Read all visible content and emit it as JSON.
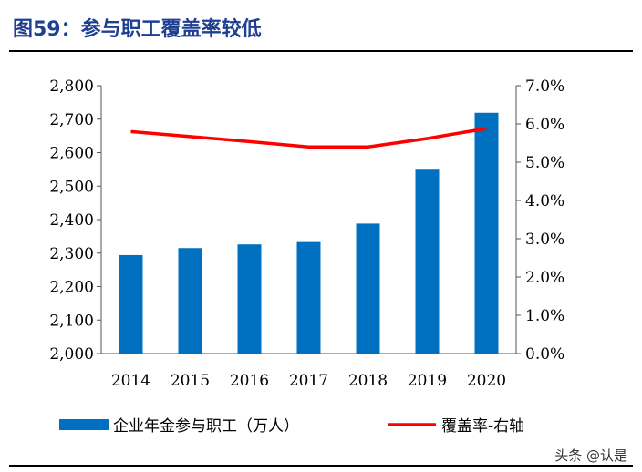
{
  "title": "图59：参与职工覆盖率较低",
  "watermark": "头条 @认是",
  "chart_data": {
    "type": "bar+line",
    "categories": [
      "2014",
      "2015",
      "2016",
      "2017",
      "2018",
      "2019",
      "2020"
    ],
    "series": [
      {
        "name": "企业年金参与职工（万人）",
        "type": "bar",
        "axis": "left",
        "color": "#0070c0",
        "values": [
          2294,
          2315,
          2326,
          2333,
          2388,
          2549,
          2719
        ]
      },
      {
        "name": "覆盖率-右轴",
        "type": "line",
        "axis": "right",
        "color": "#ff0000",
        "values": [
          5.8,
          5.67,
          5.54,
          5.4,
          5.4,
          5.62,
          5.88
        ]
      }
    ],
    "left_axis": {
      "ylim": [
        2000,
        2800
      ],
      "ticks": [
        "2,000",
        "2,100",
        "2,200",
        "2,300",
        "2,400",
        "2,500",
        "2,600",
        "2,700",
        "2,800"
      ]
    },
    "right_axis": {
      "ylim": [
        0,
        7
      ],
      "ticks": [
        "0.0%",
        "1.0%",
        "2.0%",
        "3.0%",
        "4.0%",
        "5.0%",
        "6.0%",
        "7.0%"
      ]
    },
    "grid": false,
    "legend": "bottom"
  }
}
